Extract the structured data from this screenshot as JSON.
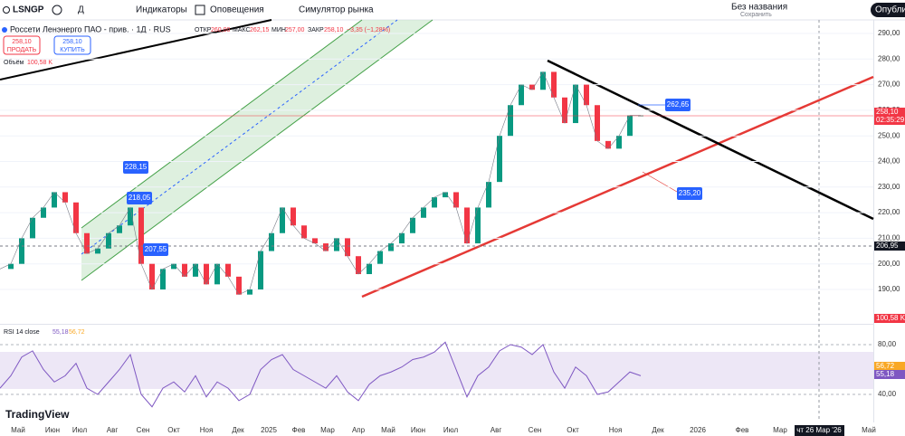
{
  "toolbar": {
    "symbol": "LSNGP",
    "interval": "Д",
    "indicators": "Индикаторы",
    "alerts": "Оповещения",
    "replay": "Симулятор рынка",
    "layout_name": "Без названия",
    "saved": "Сохранить",
    "publish": "Опубликовать"
  },
  "legend": {
    "name": "Россети Ленэнерго ПАО - прив. · 1Д · RUS",
    "open_label": "ОТКР",
    "open": "260,00",
    "high_label": "МАКС",
    "high": "262,15",
    "low_label": "МИН",
    "low": "257,00",
    "close_label": "ЗАКР",
    "close": "258,10",
    "change": "−3,35 (−1,28%)",
    "sell_price": "258,10",
    "sell": "ПРОДАТЬ",
    "buy_price": "258,10",
    "buy": "КУПИТЬ",
    "volume_label": "Объём",
    "volume": "100,58 K"
  },
  "chart": {
    "price_ticks": [
      {
        "value": 290,
        "label": "290,00"
      },
      {
        "value": 280,
        "label": "280,00"
      },
      {
        "value": 270,
        "label": "270,00"
      },
      {
        "value": 260,
        "label": "260,00"
      },
      {
        "value": 250,
        "label": "250,00"
      },
      {
        "value": 240,
        "label": "240,00"
      },
      {
        "value": 230,
        "label": "230,00"
      },
      {
        "value": 220,
        "label": "220,00"
      },
      {
        "value": 210,
        "label": "210,00"
      },
      {
        "value": 200,
        "label": "200,00"
      },
      {
        "value": 190,
        "label": "190,00"
      }
    ],
    "prices": [
      198,
      200,
      210,
      218,
      222,
      228,
      224,
      212,
      204,
      206,
      212,
      215,
      222,
      200,
      190,
      198,
      200,
      195,
      200,
      192,
      200,
      195,
      188,
      190,
      205,
      212,
      222,
      215,
      210,
      208,
      205,
      210,
      203,
      196,
      200,
      205,
      208,
      212,
      218,
      222,
      226,
      228,
      222,
      208,
      222,
      232,
      250,
      262,
      270,
      268,
      275,
      265,
      255,
      270,
      262,
      248,
      245,
      250,
      258,
      258
    ],
    "annotations": [
      "228,15",
      "218,05",
      "207,55",
      "262,65",
      "235,20"
    ],
    "last_price": "258,10",
    "countdown": "02:35:29",
    "level": "206,95",
    "volume_badge": "100,58 K",
    "rsi_label": "RSI 14 close",
    "rsi_value": "55,18",
    "rsi_ma": "56,72",
    "rsi_ticks": [
      {
        "value": 80,
        "label": "80,00"
      },
      {
        "value": 40,
        "label": "40,00"
      }
    ],
    "rsi": [
      45,
      55,
      70,
      75,
      60,
      50,
      55,
      65,
      45,
      40,
      50,
      60,
      72,
      40,
      30,
      45,
      50,
      42,
      55,
      38,
      50,
      45,
      35,
      40,
      60,
      68,
      72,
      60,
      55,
      50,
      45,
      55,
      42,
      35,
      48,
      55,
      58,
      62,
      68,
      70,
      74,
      82,
      60,
      38,
      55,
      62,
      75,
      80,
      78,
      72,
      80,
      58,
      45,
      62,
      55,
      40,
      42,
      50,
      58,
      55
    ],
    "months": [
      "Май",
      "Июн",
      "Июл",
      "Авг",
      "Сен",
      "Окт",
      "Ноя",
      "Дек",
      "2025",
      "Фев",
      "Мар",
      "Апр",
      "Май",
      "Июн",
      "Июл",
      "Авг",
      "Сен",
      "Окт",
      "Ноя",
      "Дек",
      "2026",
      "Фев",
      "Мар",
      "чт 26 Мар '26",
      "Май"
    ]
  },
  "brand": "TradingView"
}
